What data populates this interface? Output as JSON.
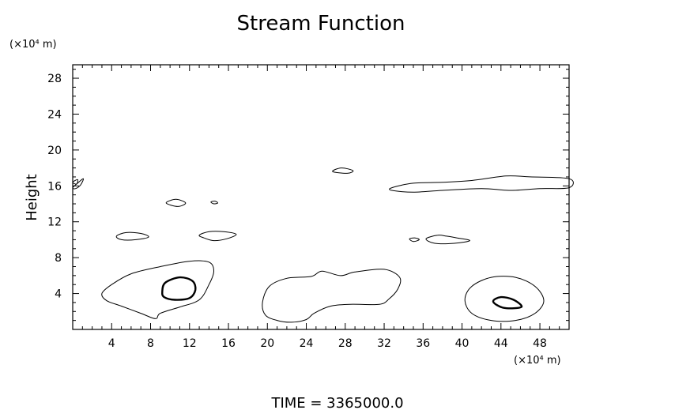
{
  "chart_data": {
    "type": "contour",
    "title": "Stream Function",
    "ylabel": "Height",
    "y_unit": "(×10⁴ m)",
    "x_unit": "(×10⁴ m)",
    "xlim": [
      0,
      51
    ],
    "ylim": [
      0,
      29.5
    ],
    "xticks": [
      4,
      8,
      12,
      16,
      20,
      24,
      28,
      32,
      36,
      40,
      44,
      48
    ],
    "yticks": [
      4,
      8,
      12,
      16,
      20,
      24,
      28
    ],
    "grid": false,
    "footer": "TIME  =  3365000.0",
    "contours": [
      {
        "level": "outer",
        "points": [
          [
            3,
            4
          ],
          [
            4,
            5
          ],
          [
            6,
            6.2
          ],
          [
            9,
            7
          ],
          [
            12,
            7.6
          ],
          [
            14,
            7.5
          ],
          [
            14.5,
            6.5
          ],
          [
            14,
            5
          ],
          [
            13,
            3.3
          ],
          [
            11,
            2.5
          ],
          [
            9,
            1.8
          ],
          [
            8.5,
            1.2
          ],
          [
            7,
            1.8
          ],
          [
            5,
            2.6
          ],
          [
            3.5,
            3.2
          ],
          [
            3,
            4
          ]
        ]
      },
      {
        "level": "inner",
        "bold": true,
        "points": [
          [
            9.2,
            4.2
          ],
          [
            9.5,
            5.2
          ],
          [
            11,
            5.8
          ],
          [
            12.3,
            5.4
          ],
          [
            12.6,
            4.4
          ],
          [
            12,
            3.5
          ],
          [
            10.5,
            3.3
          ],
          [
            9.4,
            3.6
          ],
          [
            9.2,
            4.2
          ]
        ]
      },
      {
        "level": "outer",
        "points": [
          [
            19.5,
            3
          ],
          [
            20.2,
            4.8
          ],
          [
            22,
            5.7
          ],
          [
            24.5,
            5.9
          ],
          [
            25.6,
            6.5
          ],
          [
            27.5,
            6
          ],
          [
            29,
            6.4
          ],
          [
            32,
            6.7
          ],
          [
            33.6,
            5.8
          ],
          [
            33.4,
            4.5
          ],
          [
            32.5,
            3.4
          ],
          [
            31.5,
            2.8
          ],
          [
            28.5,
            2.8
          ],
          [
            26.5,
            2.6
          ],
          [
            24.8,
            1.8
          ],
          [
            24,
            1.1
          ],
          [
            22.5,
            0.8
          ],
          [
            21,
            1
          ],
          [
            19.8,
            1.6
          ],
          [
            19.5,
            3
          ]
        ]
      },
      {
        "level": "outer",
        "points": [
          [
            40.3,
            3.3
          ],
          [
            41,
            4.8
          ],
          [
            43,
            5.8
          ],
          [
            45.5,
            5.8
          ],
          [
            47.5,
            4.8
          ],
          [
            48.4,
            3.2
          ],
          [
            47.5,
            1.8
          ],
          [
            45.5,
            1
          ],
          [
            43,
            1
          ],
          [
            41,
            1.8
          ],
          [
            40.3,
            3.3
          ]
        ]
      },
      {
        "level": "inner",
        "bold": true,
        "points": [
          [
            43.2,
            3.1
          ],
          [
            44,
            3.6
          ],
          [
            45.3,
            3.3
          ],
          [
            46.1,
            2.5
          ],
          [
            44.3,
            2.4
          ],
          [
            43.2,
            3.1
          ]
        ]
      },
      {
        "level": "outer",
        "points": [
          [
            32.8,
            15.8
          ],
          [
            35,
            16.3
          ],
          [
            38,
            16.4
          ],
          [
            41,
            16.6
          ],
          [
            44.5,
            17.1
          ],
          [
            47,
            17
          ],
          [
            51,
            16.8
          ],
          [
            51,
            15.8
          ],
          [
            48,
            15.7
          ],
          [
            45,
            15.5
          ],
          [
            42,
            15.7
          ],
          [
            38,
            15.5
          ],
          [
            35,
            15.3
          ],
          [
            32.8,
            15.5
          ],
          [
            32.8,
            15.8
          ]
        ]
      },
      {
        "level": "outer",
        "points": [
          [
            26.7,
            17.6
          ],
          [
            27.6,
            18
          ],
          [
            28.8,
            17.7
          ],
          [
            28.2,
            17.4
          ],
          [
            26.7,
            17.6
          ]
        ]
      },
      {
        "level": "outer",
        "points": [
          [
            4.5,
            10.4
          ],
          [
            5.5,
            10.8
          ],
          [
            7,
            10.7
          ],
          [
            7.8,
            10.3
          ],
          [
            6.5,
            10
          ],
          [
            5,
            10
          ],
          [
            4.5,
            10.4
          ]
        ]
      },
      {
        "level": "outer",
        "points": [
          [
            13,
            10.5
          ],
          [
            14,
            10.9
          ],
          [
            15.5,
            10.9
          ],
          [
            16.8,
            10.6
          ],
          [
            15.8,
            10.1
          ],
          [
            14.5,
            9.9
          ],
          [
            13.5,
            10.2
          ],
          [
            13,
            10.5
          ]
        ]
      },
      {
        "level": "outer",
        "points": [
          [
            9.6,
            14.1
          ],
          [
            10.6,
            14.5
          ],
          [
            11.6,
            14.1
          ],
          [
            10.8,
            13.7
          ],
          [
            9.6,
            14.1
          ]
        ]
      },
      {
        "level": "outer",
        "points": [
          [
            14.2,
            14.2
          ],
          [
            14.6,
            14.3
          ],
          [
            14.9,
            14.1
          ],
          [
            14.5,
            14
          ],
          [
            14.2,
            14.2
          ]
        ]
      },
      {
        "level": "outer",
        "points": [
          [
            34.6,
            10.1
          ],
          [
            35.2,
            10.2
          ],
          [
            35.6,
            10
          ],
          [
            35,
            9.8
          ],
          [
            34.6,
            10.1
          ]
        ]
      },
      {
        "level": "outer",
        "points": [
          [
            36.3,
            10.1
          ],
          [
            37.5,
            10.5
          ],
          [
            38.4,
            10.4
          ],
          [
            39.5,
            10.2
          ],
          [
            40.8,
            9.9
          ],
          [
            39.2,
            9.6
          ],
          [
            37.2,
            9.6
          ],
          [
            36.3,
            10.1
          ]
        ]
      },
      {
        "level": "outer",
        "points": [
          [
            0,
            15.8
          ],
          [
            0.6,
            16.4
          ],
          [
            1.1,
            16.8
          ],
          [
            0.8,
            16.1
          ],
          [
            0.3,
            15.7
          ],
          [
            0,
            15.8
          ]
        ]
      },
      {
        "level": "outer",
        "points": [
          [
            0,
            16.4
          ],
          [
            0.5,
            16.7
          ],
          [
            0.4,
            16.2
          ],
          [
            0,
            16.4
          ]
        ]
      }
    ]
  }
}
